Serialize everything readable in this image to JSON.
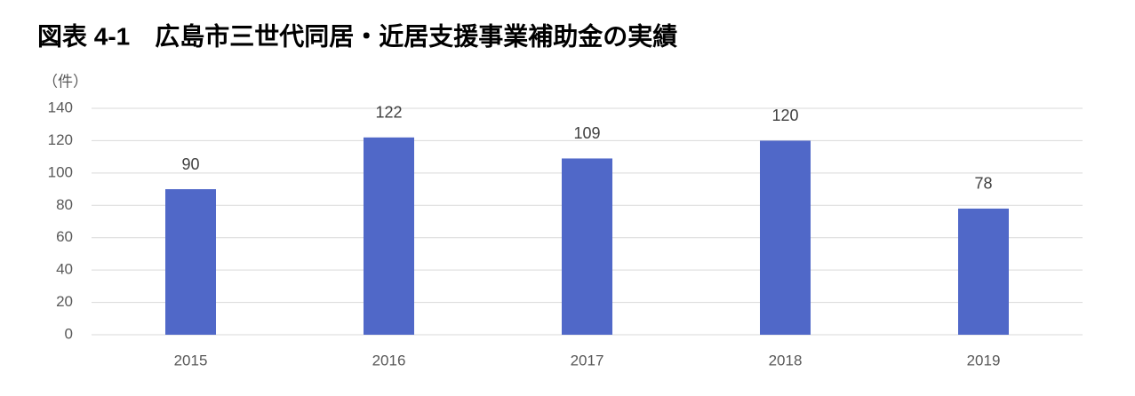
{
  "chart_data": {
    "type": "bar",
    "title": "図表 4-1　広島市三世代同居・近居支援事業補助金の実績",
    "y_unit_label": "（件）",
    "categories": [
      "2015",
      "2016",
      "2017",
      "2018",
      "2019"
    ],
    "values": [
      90,
      122,
      109,
      120,
      78
    ],
    "color": "#5068c8",
    "ylim": [
      0,
      140
    ],
    "yticks": [
      0,
      20,
      40,
      60,
      80,
      100,
      120,
      140
    ],
    "grid": true,
    "data_labels": true
  }
}
